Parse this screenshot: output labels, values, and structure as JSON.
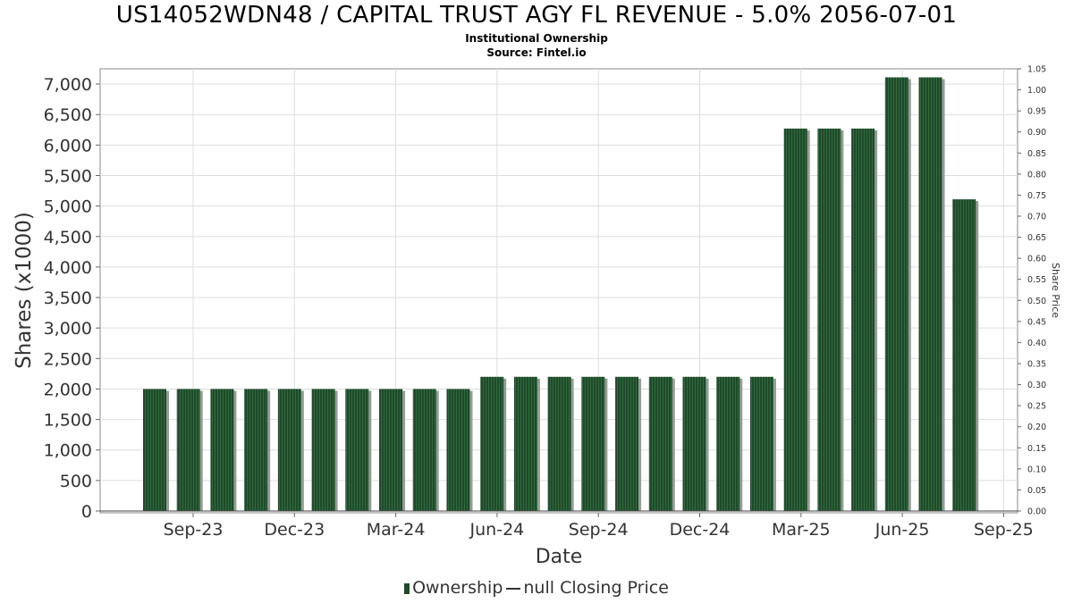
{
  "header": {
    "title": "US14052WDN48 / CAPITAL TRUST AGY FL REVENUE - 5.0% 2056-07-01",
    "subtitle": "Institutional Ownership",
    "source": "Source: Fintel.io"
  },
  "legend": {
    "ownership_label": "Ownership",
    "price_label": "null Closing Price"
  },
  "colors": {
    "bar": "#1f4a2a",
    "bar_stripe": "#2f6b3d",
    "bar_shadow": "#9a9a9a",
    "grid": "#dddddd"
  },
  "chart_data": {
    "type": "bar",
    "xlabel": "Date",
    "ylabel": "Shares (x1000)",
    "y2label": "Share Price",
    "ylim": [
      0,
      7250
    ],
    "y2lim": [
      0,
      1.05
    ],
    "y_ticks": [
      "0",
      "500",
      "1,000",
      "1,500",
      "2,000",
      "2,500",
      "3,000",
      "3,500",
      "4,000",
      "4,500",
      "5,000",
      "5,500",
      "6,000",
      "6,500",
      "7,000"
    ],
    "y_tick_values": [
      0,
      500,
      1000,
      1500,
      2000,
      2500,
      3000,
      3500,
      4000,
      4500,
      5000,
      5500,
      6000,
      6500,
      7000
    ],
    "y2_ticks": [
      "0.00",
      "0.05",
      "0.10",
      "0.15",
      "0.20",
      "0.25",
      "0.30",
      "0.35",
      "0.40",
      "0.45",
      "0.50",
      "0.55",
      "0.60",
      "0.65",
      "0.70",
      "0.75",
      "0.80",
      "0.85",
      "0.90",
      "0.95",
      "1.00",
      "1.05"
    ],
    "x_ticks": [
      "Sep-23",
      "Dec-23",
      "Mar-24",
      "Jun-24",
      "Sep-24",
      "Dec-24",
      "Mar-25",
      "Jun-25",
      "Sep-25"
    ],
    "grid": true,
    "legend_position": "bottom",
    "series": [
      {
        "name": "Ownership",
        "values": [
          2000,
          2000,
          2000,
          2000,
          2000,
          2000,
          2000,
          2000,
          2000,
          2000,
          2200,
          2200,
          2200,
          2200,
          2200,
          2200,
          2200,
          2200,
          2200,
          6270,
          6270,
          6270,
          7110,
          7110,
          5110
        ]
      }
    ]
  }
}
